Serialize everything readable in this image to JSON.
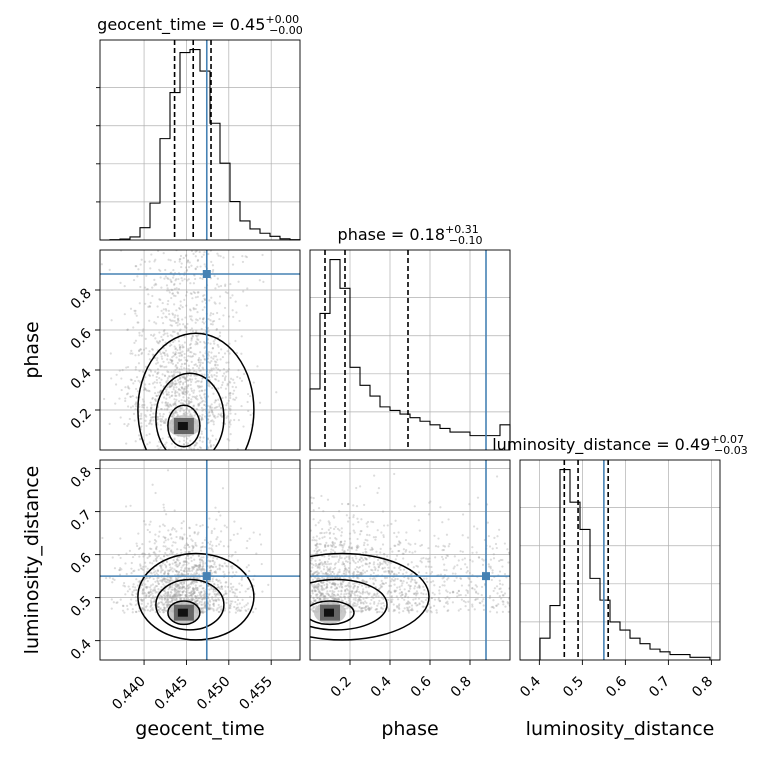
{
  "chart_data": {
    "type": "corner",
    "parameters": [
      "geocent_time",
      "phase",
      "luminosity_distance"
    ],
    "injection": {
      "geocent_time": 0.4474,
      "phase": 0.88,
      "luminosity_distance": 0.55
    },
    "colors": {
      "truth": "#4682b4",
      "hist": "#000000",
      "grid": "#b0b0b0",
      "points": "#9a9a9a"
    },
    "grid": true,
    "diagonal": [
      {
        "name": "geocent_time",
        "title": "geocent_time = 0.45",
        "title_sup": "+0.00",
        "title_sub": "−0.00",
        "range": [
          0.4348,
          0.4584
        ],
        "quantiles": [
          0.4436,
          0.4458,
          0.4479
        ],
        "bin_edges": [
          0.4348,
          0.43598,
          0.43716,
          0.43834,
          0.43952,
          0.4407,
          0.44188,
          0.44306,
          0.44424,
          0.44542,
          0.4466,
          0.44778,
          0.44896,
          0.45014,
          0.45132,
          0.4525,
          0.45368,
          0.45486,
          0.45604,
          0.45722,
          0.4584
        ],
        "counts": [
          0,
          1,
          3,
          10,
          40,
          120,
          330,
          480,
          610,
          620,
          550,
          380,
          250,
          125,
          62,
          36,
          22,
          12,
          4,
          1
        ],
        "ticks": [
          0.44,
          0.445,
          0.45,
          0.455
        ],
        "tick_labels": [
          "0.440",
          "0.445",
          "0.450",
          "0.455"
        ],
        "xlabel": "geocent_time"
      },
      {
        "name": "phase",
        "title": "phase = 0.18",
        "title_sup": "+0.31",
        "title_sub": "−0.10",
        "range": [
          0.0,
          1.0
        ],
        "quantiles": [
          0.075,
          0.175,
          0.49
        ],
        "bin_edges": [
          0.0,
          0.05,
          0.1,
          0.15,
          0.2,
          0.25,
          0.3,
          0.35,
          0.4,
          0.45,
          0.5,
          0.55,
          0.6,
          0.65,
          0.7,
          0.75,
          0.8,
          0.85,
          0.9,
          0.95,
          1.0
        ],
        "counts": [
          17,
          38,
          53,
          45,
          23,
          18,
          15,
          12,
          11,
          10,
          9,
          8,
          7,
          6,
          5,
          5,
          4,
          4,
          4,
          7
        ],
        "ticks": [
          0.2,
          0.4,
          0.6,
          0.8
        ],
        "tick_labels": [
          "0.2",
          "0.4",
          "0.6",
          "0.8"
        ],
        "xlabel": "phase"
      },
      {
        "name": "luminosity_distance",
        "title": "luminosity_distance = 0.49",
        "title_sup": "+0.07",
        "title_sub": "−0.03",
        "range": [
          0.355,
          0.82
        ],
        "quantiles": [
          0.458,
          0.49,
          0.56
        ],
        "bin_edges": [
          0.355,
          0.37825,
          0.4015,
          0.42475,
          0.448,
          0.47125,
          0.4945,
          0.51775,
          0.541,
          0.56425,
          0.5875,
          0.61075,
          0.634,
          0.65725,
          0.6805,
          0.70375,
          0.727,
          0.75025,
          0.7735,
          0.79675,
          0.82
        ],
        "counts": [
          0,
          0,
          8,
          20,
          70,
          58,
          48,
          30,
          22,
          14,
          11,
          8,
          6,
          4,
          3,
          2,
          2,
          1,
          1,
          0
        ],
        "ticks": [
          0.4,
          0.5,
          0.6,
          0.7,
          0.8
        ],
        "tick_labels": [
          "0.4",
          "0.5",
          "0.6",
          "0.7",
          "0.8"
        ],
        "xlabel": "luminosity_distance"
      }
    ],
    "y_axis": [
      {
        "name": "phase",
        "ylabel": "phase",
        "ticks": [
          0.2,
          0.4,
          0.6,
          0.8
        ],
        "tick_labels": [
          "0.2",
          "0.4",
          "0.6",
          "0.8"
        ]
      },
      {
        "name": "luminosity_distance",
        "ylabel": "luminosity_distance",
        "ticks": [
          0.4,
          0.5,
          0.6,
          0.7,
          0.8
        ],
        "tick_labels": [
          "0.4",
          "0.5",
          "0.6",
          "0.7",
          "0.8"
        ]
      }
    ],
    "pairs": [
      {
        "x": "geocent_time",
        "y": "phase",
        "mode": {
          "x": 0.4447,
          "y": 0.12
        },
        "spread": {
          "x": 0.0015,
          "y": 0.06
        }
      },
      {
        "x": "geocent_time",
        "y": "luminosity_distance",
        "mode": {
          "x": 0.4447,
          "y": 0.465
        },
        "spread": {
          "x": 0.0015,
          "y": 0.025
        }
      },
      {
        "x": "phase",
        "y": "luminosity_distance",
        "mode": {
          "x": 0.1,
          "y": 0.465
        },
        "spread": {
          "x": 0.12,
          "y": 0.03
        }
      }
    ]
  }
}
